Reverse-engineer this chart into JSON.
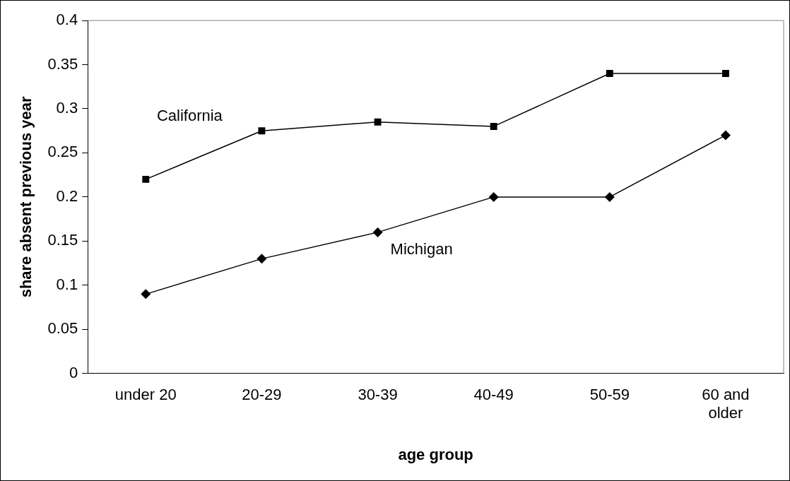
{
  "chart_data": {
    "type": "line",
    "xlabel": "age group",
    "ylabel": "share absent previous year",
    "categories": [
      "under 20",
      "20-29",
      "30-39",
      "40-49",
      "50-59",
      "60 and older"
    ],
    "series": [
      {
        "name": "California",
        "color": "#000000",
        "marker": "square",
        "values": [
          0.22,
          0.275,
          0.285,
          0.28,
          0.34,
          0.34
        ]
      },
      {
        "name": "Michigan",
        "color": "#000000",
        "marker": "diamond",
        "values": [
          0.09,
          0.13,
          0.16,
          0.2,
          0.2,
          0.27
        ]
      }
    ],
    "ylim": [
      0,
      0.4
    ],
    "yticks": [
      0,
      0.05,
      0.1,
      0.15,
      0.2,
      0.25,
      0.3,
      0.35,
      0.4
    ],
    "grid": false,
    "legend": false
  }
}
